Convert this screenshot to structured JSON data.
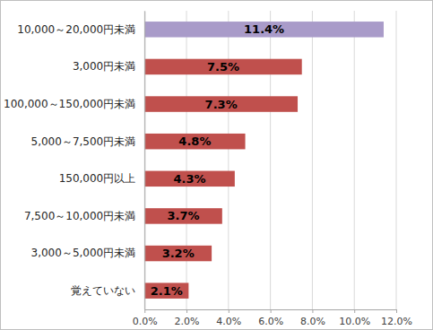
{
  "chart_data": {
    "type": "bar",
    "orientation": "horizontal",
    "categories": [
      "10,000～20,000円未満",
      "3,000円未満",
      "100,000～150,000円未満",
      "5,000～7,500円未満",
      "150,000円以上",
      "7,500～10,000円未満",
      "3,000～5,000円未満",
      "覚えていない"
    ],
    "values": [
      11.4,
      7.5,
      7.3,
      4.8,
      4.3,
      3.7,
      3.2,
      2.1
    ],
    "value_labels": [
      "11.4%",
      "7.5%",
      "7.3%",
      "4.8%",
      "4.3%",
      "3.7%",
      "3.2%",
      "2.1%"
    ],
    "colors": [
      "#a99bc9",
      "#c0504d",
      "#c0504d",
      "#c0504d",
      "#c0504d",
      "#c0504d",
      "#c0504d",
      "#c0504d"
    ],
    "xlim": [
      0,
      12
    ],
    "xticks": [
      {
        "value": 0,
        "label": "0.0%"
      },
      {
        "value": 2,
        "label": "2.0%"
      },
      {
        "value": 4,
        "label": "4.0%"
      },
      {
        "value": 6,
        "label": "6.0%"
      },
      {
        "value": 8,
        "label": "8.0%"
      },
      {
        "value": 10,
        "label": "10.0%"
      },
      {
        "value": 12,
        "label": "12.0%"
      }
    ],
    "grid": true,
    "data_labels": true
  }
}
